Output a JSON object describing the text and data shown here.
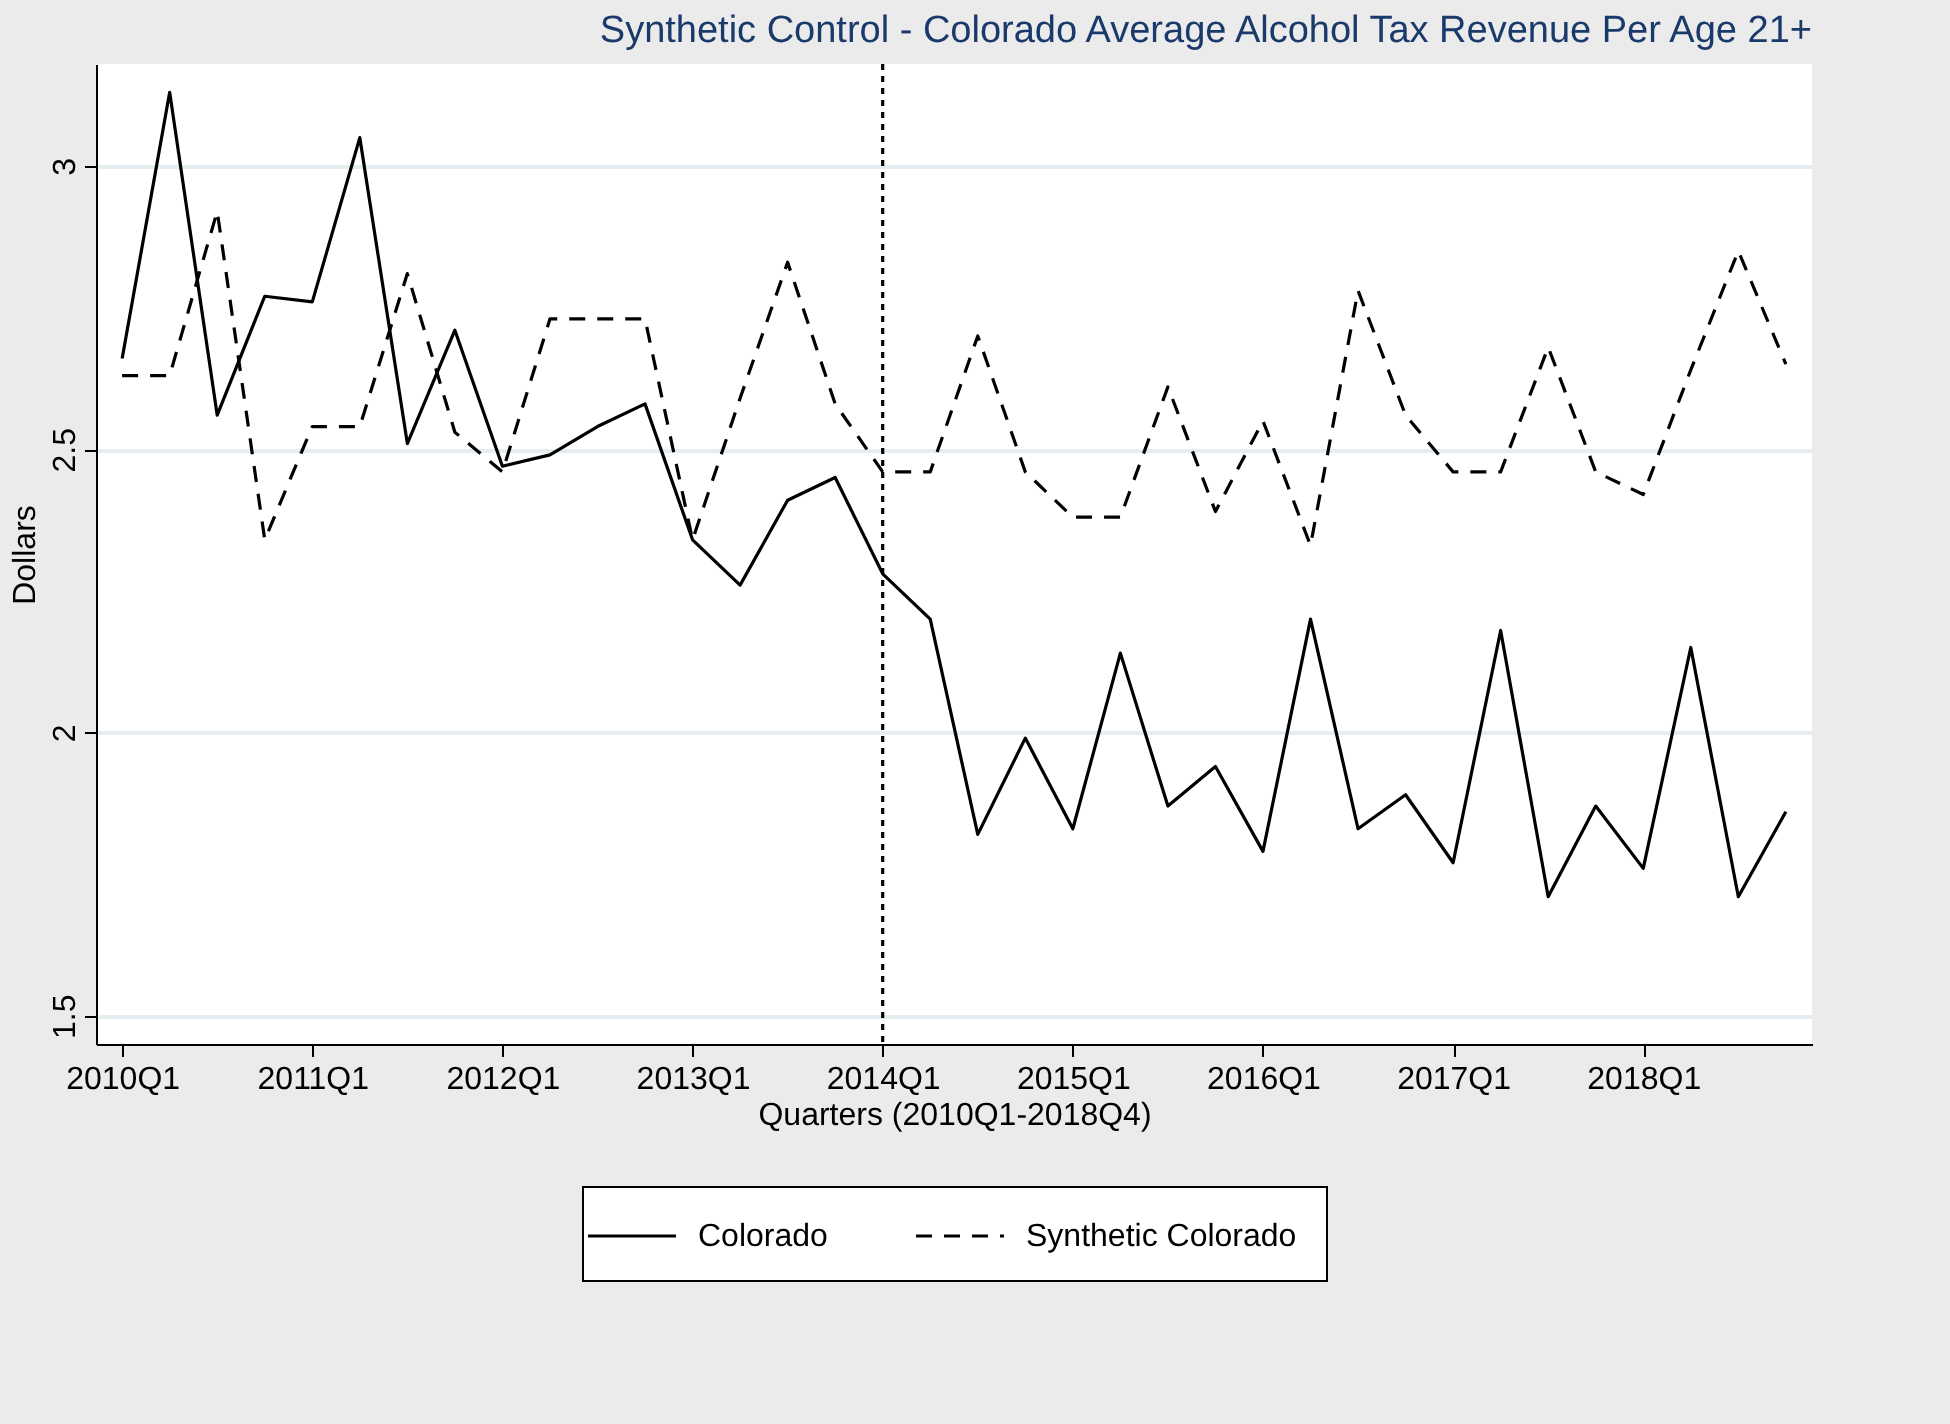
{
  "chart_data": {
    "type": "line",
    "title": "Synthetic Control - Colorado Average Alcohol Tax Revenue Per Age 21+",
    "xlabel": "Quarters (2010Q1-2018Q4)",
    "ylabel": "Dollars",
    "categories": [
      "2010Q1",
      null,
      null,
      null,
      "2011Q1",
      null,
      null,
      null,
      "2012Q1",
      null,
      null,
      null,
      "2013Q1",
      null,
      null,
      null,
      "2014Q1",
      null,
      null,
      null,
      "2015Q1",
      null,
      null,
      null,
      "2016Q1",
      null,
      null,
      null,
      "2017Q1",
      null,
      null,
      null,
      "2018Q1",
      null,
      null,
      null
    ],
    "series": [
      {
        "name": "Colorado",
        "color": "#000000",
        "line_style": "solid",
        "values": [
          2.66,
          3.13,
          2.56,
          2.77,
          2.76,
          3.05,
          2.51,
          2.71,
          2.47,
          2.49,
          2.54,
          2.58,
          2.34,
          2.26,
          2.41,
          2.45,
          2.28,
          2.2,
          1.82,
          1.99,
          1.83,
          2.14,
          1.87,
          1.94,
          1.79,
          2.2,
          1.83,
          1.89,
          1.77,
          2.18,
          1.71,
          1.87,
          1.76,
          2.15,
          1.71,
          1.86
        ]
      },
      {
        "name": "Synthetic Colorado",
        "color": "#000000",
        "line_style": "dashed",
        "values": [
          2.63,
          2.63,
          2.92,
          2.34,
          2.54,
          2.54,
          2.81,
          2.53,
          2.46,
          2.73,
          2.73,
          2.73,
          2.34,
          2.59,
          2.83,
          2.58,
          2.46,
          2.46,
          2.7,
          2.46,
          2.38,
          2.38,
          2.61,
          2.39,
          2.55,
          2.33,
          2.78,
          2.56,
          2.46,
          2.46,
          2.68,
          2.46,
          2.42,
          2.64,
          2.85,
          2.65
        ]
      }
    ],
    "ylim": [
      1.45,
      3.18
    ],
    "yticks": [
      1.5,
      2,
      2.5,
      3
    ],
    "grid": "y",
    "legend": "bottom",
    "ref_lines": [
      {
        "axis": "x",
        "value": "2014Q1",
        "line_style": "dotted",
        "color": "#000000"
      }
    ]
  }
}
